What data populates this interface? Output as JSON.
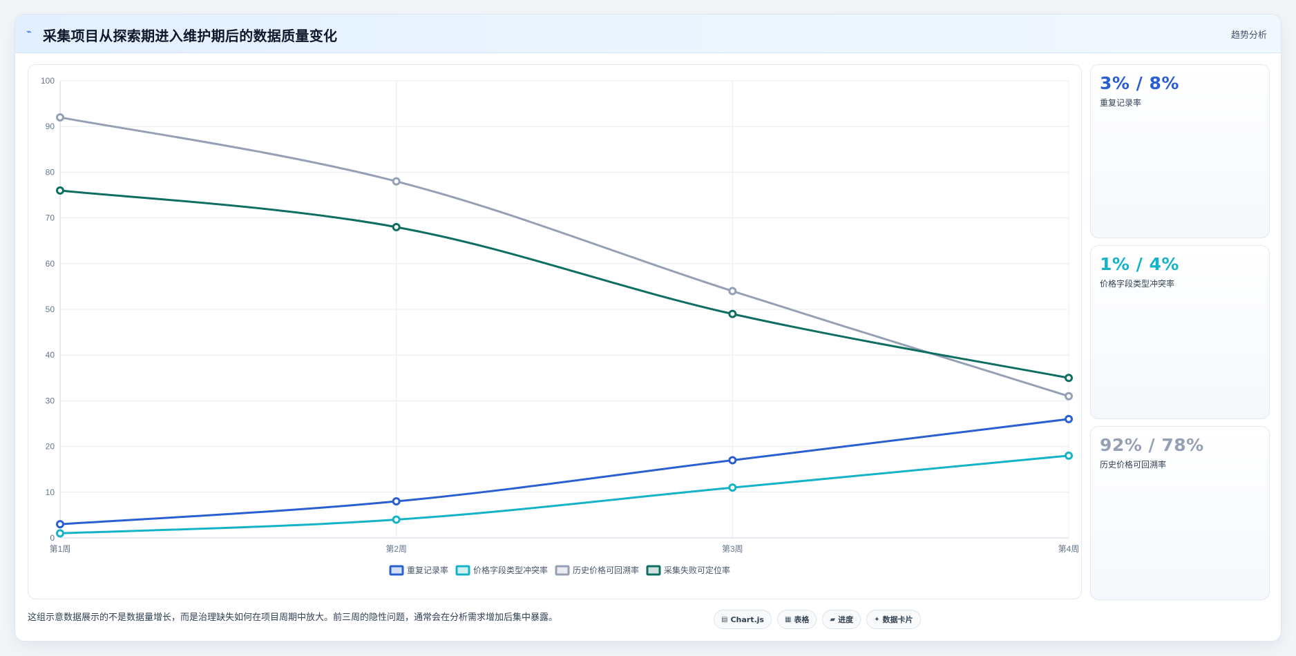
{
  "header": {
    "icon": "trend-line-icon",
    "title": "采集项目从探索期进入维护期后的数据质量变化",
    "badge": "趋势分析"
  },
  "stats": [
    {
      "value": "3% / 8%",
      "label": "重复记录率",
      "color": "#2a5fd1"
    },
    {
      "value": "1% / 4%",
      "label": "价格字段类型冲突率",
      "color": "#14b3c8"
    },
    {
      "value": "92% / 78%",
      "label": "历史价格可回溯率",
      "color": "#95a0b4"
    }
  ],
  "footer": {
    "note": "这组示意数据展示的不是数据量增长，而是治理缺失如何在项目周期中放大。前三周的隐性问题，通常会在分析需求增加后集中暴露。",
    "chips": [
      {
        "icon": "chart-icon",
        "label": "Chart.js"
      },
      {
        "icon": "table-icon",
        "label": "表格"
      },
      {
        "icon": "progress-icon",
        "label": "进度"
      },
      {
        "icon": "card-icon",
        "label": "数据卡片"
      }
    ]
  },
  "chart_data": {
    "type": "line",
    "categories": [
      "第1周",
      "第2周",
      "第3周",
      "第4周"
    ],
    "ylim": [
      0,
      100
    ],
    "y_ticks": [
      0,
      10,
      20,
      30,
      40,
      50,
      60,
      70,
      80,
      90,
      100
    ],
    "grid": true,
    "legend": "bottom",
    "series": [
      {
        "name": "重复记录率",
        "color": "#2a5fd1",
        "values": [
          3,
          8,
          17,
          26
        ]
      },
      {
        "name": "价格字段类型冲突率",
        "color": "#14b3c8",
        "values": [
          1,
          4,
          11,
          18
        ]
      },
      {
        "name": "历史价格可回溯率",
        "color": "#95a0b4",
        "values": [
          92,
          78,
          54,
          31
        ]
      },
      {
        "name": "采集失败可定位率",
        "color": "#0e6e62",
        "values": [
          76,
          68,
          49,
          35
        ]
      }
    ]
  }
}
